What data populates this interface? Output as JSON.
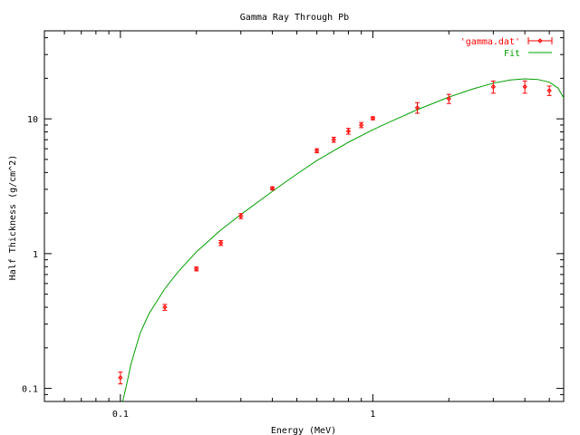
{
  "chart_data": {
    "type": "scatter",
    "title": "Gamma Ray Through Pb",
    "xlabel": "Energy (MeV)",
    "ylabel": "Half Thickness (g/cm^2)",
    "x_scale": "log",
    "y_scale": "log",
    "xlim": [
      0.05,
      5.7
    ],
    "ylim": [
      0.08,
      45
    ],
    "x_ticks": [
      0.1,
      1
    ],
    "x_tick_labels": [
      "0.1",
      "1"
    ],
    "y_ticks": [
      0.1,
      1,
      10
    ],
    "y_tick_labels": [
      "0.1",
      "1",
      "10"
    ],
    "grid": false,
    "legend_position": "top-right",
    "series": [
      {
        "name": "'gamma.dat'",
        "type": "errorbar",
        "color": "#ff0000",
        "points": [
          {
            "x": 0.1,
            "y": 0.12,
            "err": 0.012
          },
          {
            "x": 0.15,
            "y": 0.4,
            "err": 0.02
          },
          {
            "x": 0.2,
            "y": 0.77,
            "err": 0.025
          },
          {
            "x": 0.25,
            "y": 1.2,
            "err": 0.05
          },
          {
            "x": 0.3,
            "y": 1.9,
            "err": 0.08
          },
          {
            "x": 0.4,
            "y": 3.05,
            "err": 0.08
          },
          {
            "x": 0.6,
            "y": 5.8,
            "err": 0.2
          },
          {
            "x": 0.7,
            "y": 7.0,
            "err": 0.3
          },
          {
            "x": 0.8,
            "y": 8.1,
            "err": 0.4
          },
          {
            "x": 0.9,
            "y": 9.0,
            "err": 0.4
          },
          {
            "x": 1.0,
            "y": 10.1,
            "err": 0.25
          },
          {
            "x": 1.5,
            "y": 12.1,
            "err": 1.1
          },
          {
            "x": 2.0,
            "y": 14.1,
            "err": 1.1
          },
          {
            "x": 3.0,
            "y": 17.3,
            "err": 1.8
          },
          {
            "x": 4.0,
            "y": 17.3,
            "err": 1.8
          },
          {
            "x": 5.0,
            "y": 16.2,
            "err": 1.3
          }
        ]
      },
      {
        "name": "Fit",
        "type": "line",
        "color": "#00a000",
        "x": [
          0.102,
          0.105,
          0.11,
          0.115,
          0.12,
          0.13,
          0.15,
          0.17,
          0.2,
          0.25,
          0.3,
          0.4,
          0.5,
          0.6,
          0.7,
          0.8,
          1.0,
          1.2,
          1.5,
          2.0,
          2.5,
          3.0,
          3.5,
          4.0,
          4.5,
          5.0,
          5.4,
          5.7
        ],
        "y": [
          0.08,
          0.1,
          0.15,
          0.2,
          0.26,
          0.36,
          0.55,
          0.74,
          1.03,
          1.5,
          1.95,
          2.9,
          3.9,
          4.9,
          5.8,
          6.7,
          8.3,
          9.7,
          11.7,
          14.5,
          16.7,
          18.4,
          19.4,
          19.8,
          19.6,
          18.7,
          17.0,
          14.3
        ]
      }
    ]
  }
}
